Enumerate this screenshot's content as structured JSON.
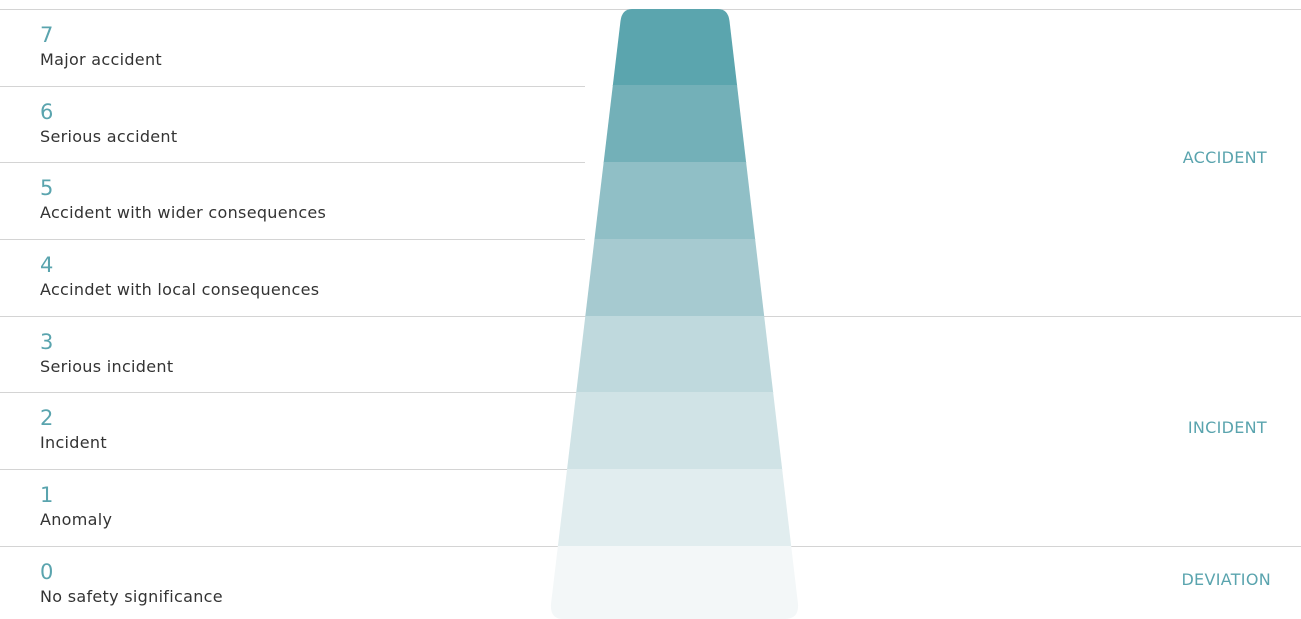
{
  "levels": [
    {
      "number": "7",
      "label": "Major accident",
      "color": "#5ba5ae"
    },
    {
      "number": "6",
      "label": "Serious accident",
      "color": "#73b0b8"
    },
    {
      "number": "5",
      "label": "Accident with wider consequences",
      "color": "#90bfc6"
    },
    {
      "number": "4",
      "label": "Accindet with local consequences",
      "color": "#a6cad0"
    },
    {
      "number": "3",
      "label": "Serious incident",
      "color": "#bfd9dd"
    },
    {
      "number": "2",
      "label": "Incident",
      "color": "#d0e3e6"
    },
    {
      "number": "1",
      "label": "Anomaly",
      "color": "#e1edef"
    },
    {
      "number": "0",
      "label": "No safety significance",
      "color": "#f3f7f8"
    }
  ],
  "categories": {
    "accident": "ACCIDENT",
    "incident": "INCIDENT",
    "deviation": "DEVIATION"
  }
}
